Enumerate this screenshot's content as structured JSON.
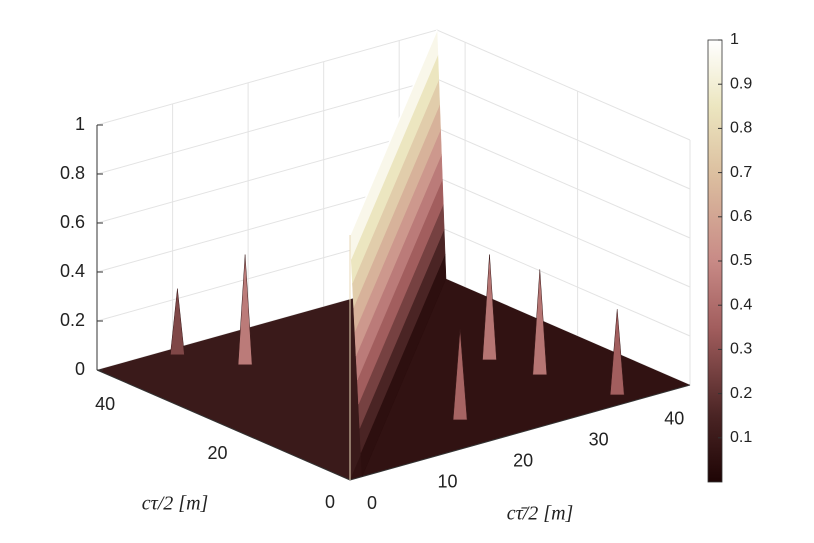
{
  "chart_data": {
    "type": "surface",
    "xlabel": "cτ̄/2 [m]",
    "ylabel": "cτ/2 [m]",
    "xlim": [
      0,
      45
    ],
    "ylim": [
      0,
      45
    ],
    "zlim": [
      0,
      1
    ],
    "xticks": [
      0,
      10,
      20,
      30,
      40
    ],
    "yticks": [
      0,
      20,
      40
    ],
    "zticks": [
      0,
      0.2,
      0.4,
      0.6,
      0.8,
      1
    ],
    "clim": [
      0,
      1
    ],
    "colorbar_ticks": [
      0.1,
      0.2,
      0.3,
      0.4,
      0.5,
      0.6,
      0.7,
      0.8,
      0.9,
      1
    ],
    "diagonal_value": 1,
    "peaks": {
      "x": [
        9.3,
        12.9,
        20,
        33.5,
        34.8,
        37.3
      ],
      "y": [
        43.2,
        36,
        7.3,
        20.2,
        13,
        2.6
      ],
      "z": [
        0.27,
        0.45,
        0.37,
        0.43,
        0.43,
        0.35
      ]
    },
    "grid": true
  }
}
